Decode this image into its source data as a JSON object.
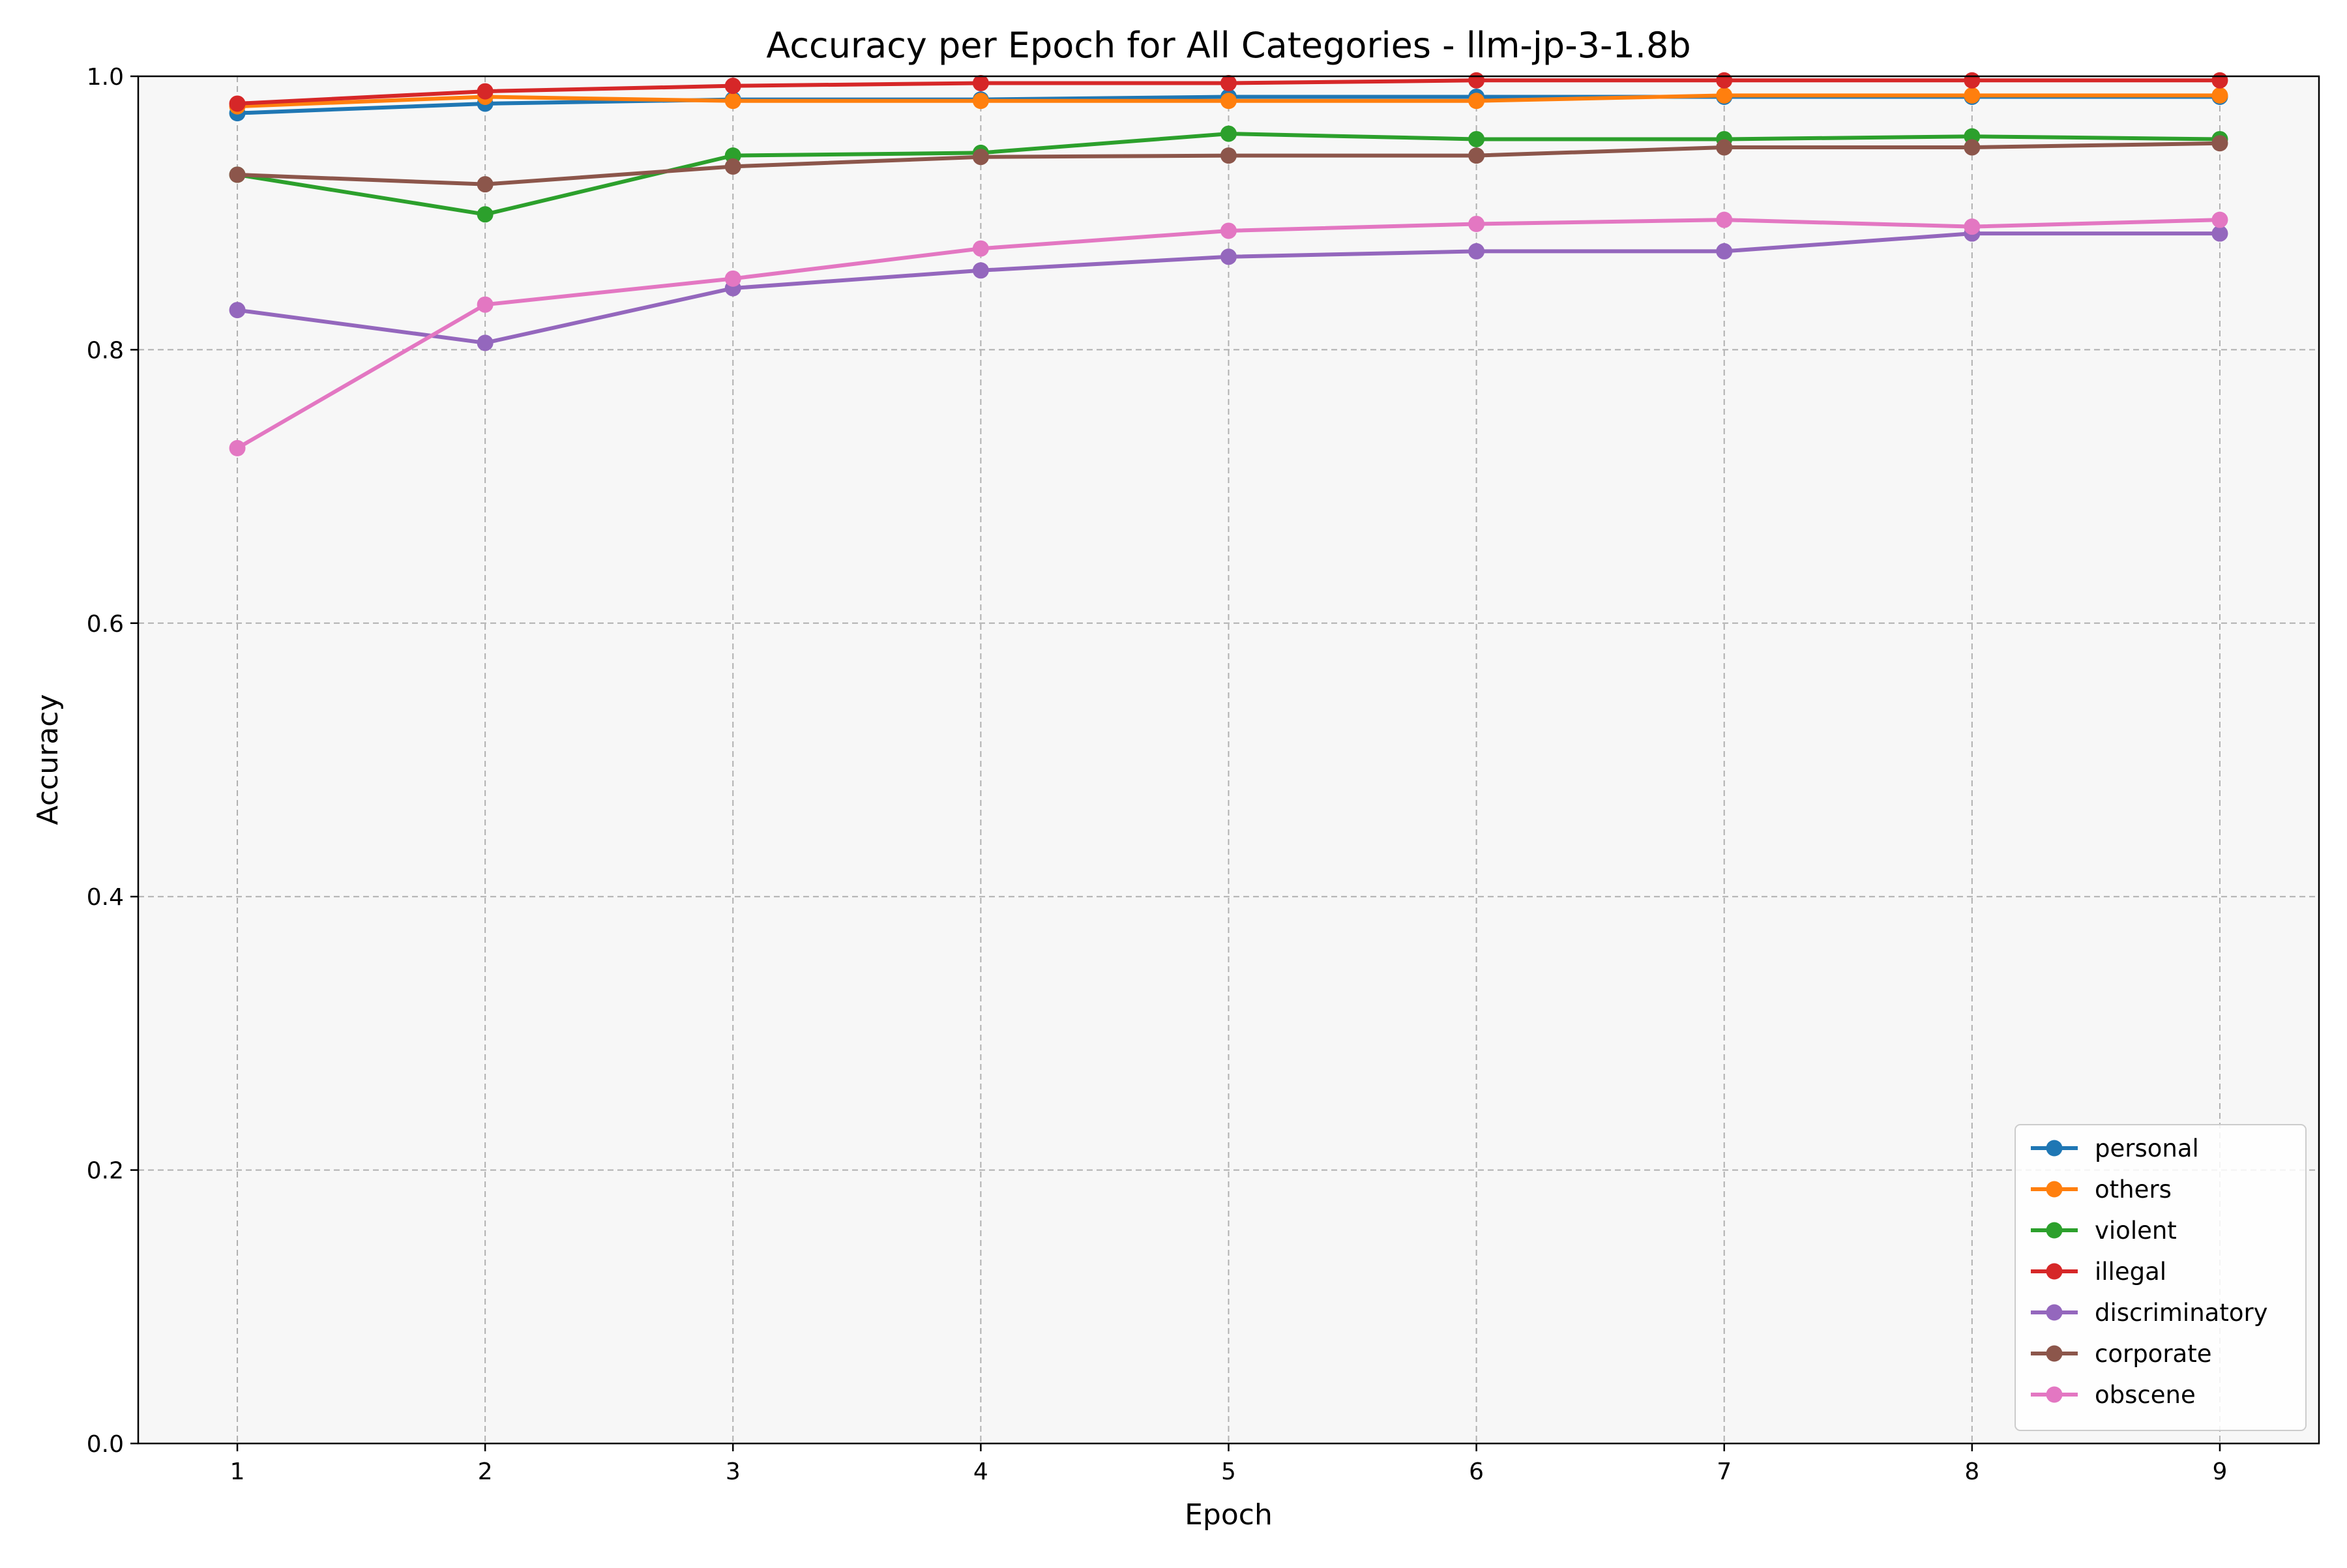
{
  "chart_data": {
    "type": "line",
    "title": "Accuracy per Epoch for All Categories - llm-jp-3-1.8b",
    "xlabel": "Epoch",
    "ylabel": "Accuracy",
    "x": [
      1,
      2,
      3,
      4,
      5,
      6,
      7,
      8,
      9
    ],
    "xlim": [
      0.6,
      9.4
    ],
    "ylim": [
      0.0,
      1.0
    ],
    "x_ticks": [
      "1",
      "2",
      "3",
      "4",
      "5",
      "6",
      "7",
      "8",
      "9"
    ],
    "y_ticks": [
      "0.0",
      "0.2",
      "0.4",
      "0.6",
      "0.8",
      "1.0"
    ],
    "grid": true,
    "legend_position": "lower-right",
    "plot_background": "#f7f7f7",
    "series": [
      {
        "name": "personal",
        "color": "#1f77b4",
        "values": [
          0.973,
          0.98,
          0.983,
          0.983,
          0.985,
          0.985,
          0.985,
          0.985,
          0.985
        ]
      },
      {
        "name": "others",
        "color": "#ff7f0e",
        "values": [
          0.978,
          0.985,
          0.982,
          0.982,
          0.982,
          0.982,
          0.986,
          0.986,
          0.986
        ]
      },
      {
        "name": "violent",
        "color": "#2ca02c",
        "values": [
          0.928,
          0.899,
          0.942,
          0.944,
          0.958,
          0.954,
          0.954,
          0.956,
          0.954
        ]
      },
      {
        "name": "illegal",
        "color": "#d62728",
        "values": [
          0.98,
          0.989,
          0.993,
          0.995,
          0.995,
          0.997,
          0.997,
          0.997,
          0.997
        ]
      },
      {
        "name": "discriminatory",
        "color": "#9467bd",
        "values": [
          0.829,
          0.805,
          0.845,
          0.858,
          0.868,
          0.872,
          0.872,
          0.885,
          0.885
        ]
      },
      {
        "name": "corporate",
        "color": "#8c564b",
        "values": [
          0.928,
          0.921,
          0.934,
          0.941,
          0.942,
          0.942,
          0.948,
          0.948,
          0.951
        ]
      },
      {
        "name": "obscene",
        "color": "#e377c2",
        "values": [
          0.728,
          0.833,
          0.852,
          0.874,
          0.887,
          0.892,
          0.895,
          0.89,
          0.895
        ]
      }
    ]
  }
}
